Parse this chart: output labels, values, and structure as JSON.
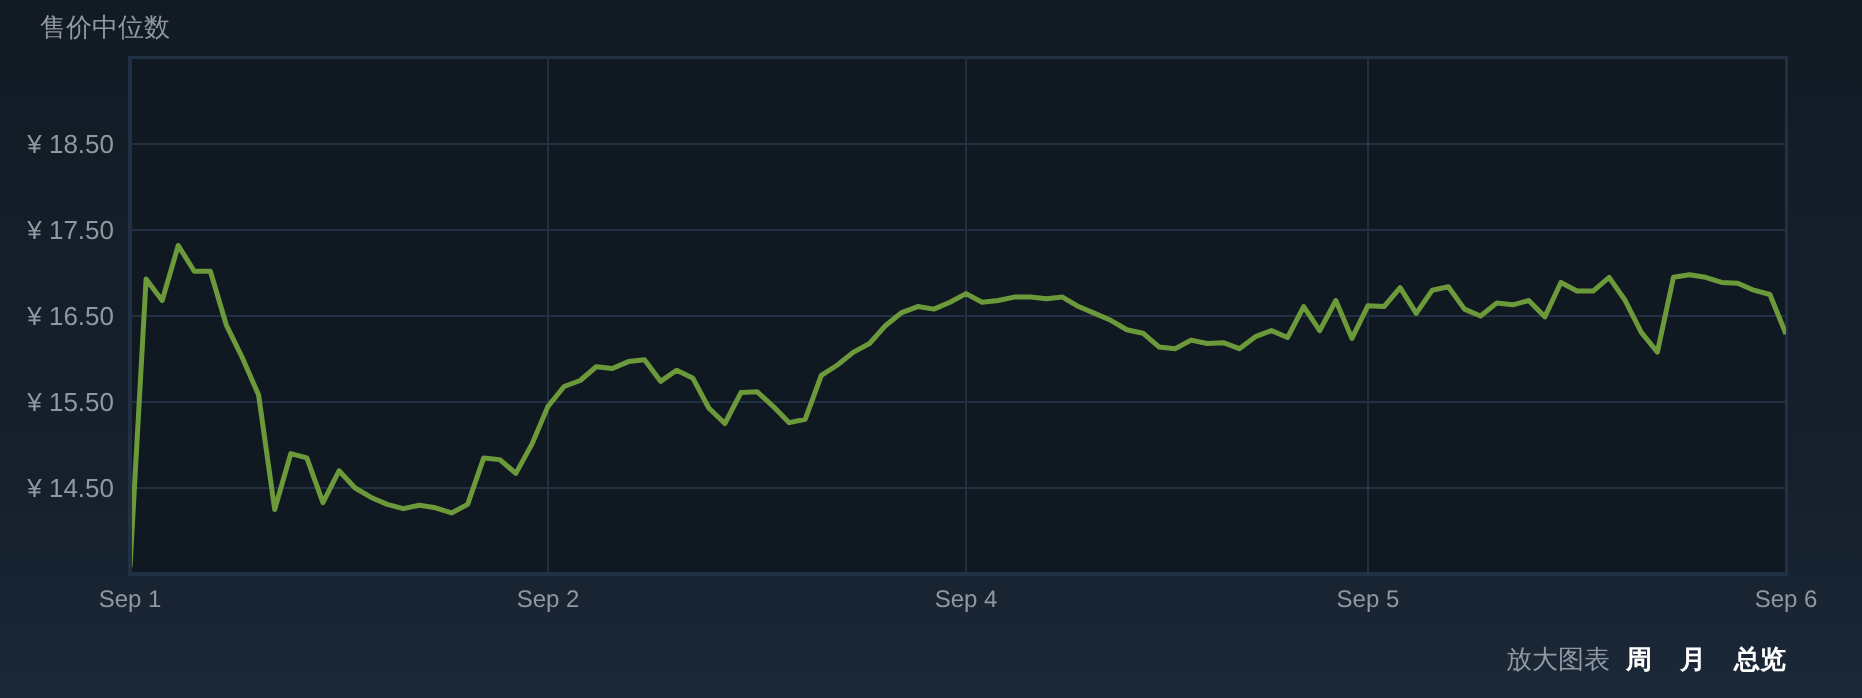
{
  "chart_data": {
    "type": "line",
    "title": "售价中位数",
    "categories": [
      "Sep 1",
      null,
      null,
      null,
      null,
      null,
      null,
      null,
      null,
      null,
      null,
      null,
      null,
      null,
      null,
      null,
      null,
      null,
      null,
      null,
      null,
      null,
      null,
      null,
      null,
      null,
      "Sep 2",
      null,
      null,
      null,
      null,
      null,
      null,
      null,
      null,
      null,
      null,
      null,
      null,
      null,
      null,
      null,
      null,
      null,
      null,
      null,
      null,
      null,
      null,
      null,
      null,
      null,
      "Sep 4",
      null,
      null,
      null,
      null,
      null,
      null,
      null,
      null,
      null,
      null,
      null,
      null,
      null,
      null,
      null,
      null,
      null,
      null,
      null,
      null,
      null,
      null,
      null,
      null,
      "Sep 5",
      null,
      null,
      null,
      null,
      null,
      null,
      null,
      null,
      null,
      null,
      null,
      null,
      null,
      null,
      null,
      null,
      null,
      null,
      null,
      null,
      null,
      null,
      null,
      null,
      null,
      "Sep 6"
    ],
    "series": [
      {
        "color": "#6c9a3a",
        "values": [
          13.58,
          16.93,
          16.68,
          17.32,
          17.02,
          17.02,
          16.39,
          16.01,
          15.58,
          14.25,
          14.9,
          14.85,
          14.33,
          14.7,
          14.5,
          14.39,
          14.31,
          14.26,
          14.3,
          14.27,
          14.21,
          14.31,
          14.85,
          14.83,
          14.67,
          15.01,
          15.45,
          15.68,
          15.75,
          15.91,
          15.89,
          15.97,
          15.99,
          15.74,
          15.87,
          15.78,
          15.43,
          15.25,
          15.61,
          15.62,
          15.45,
          15.26,
          15.3,
          15.81,
          15.93,
          16.08,
          16.18,
          16.39,
          16.54,
          16.61,
          16.58,
          16.66,
          16.76,
          16.66,
          16.68,
          16.72,
          16.72,
          16.7,
          16.72,
          16.61,
          16.53,
          16.45,
          16.34,
          16.3,
          16.14,
          16.12,
          16.22,
          16.18,
          16.19,
          16.12,
          16.26,
          16.33,
          16.25,
          16.61,
          16.33,
          16.68,
          16.24,
          16.62,
          16.61,
          16.83,
          16.53,
          16.8,
          16.84,
          16.58,
          16.5,
          16.65,
          16.63,
          16.68,
          16.49,
          16.89,
          16.79,
          16.79,
          16.95,
          16.68,
          16.31,
          16.08,
          16.95,
          16.98,
          16.95,
          16.89,
          16.88,
          16.8,
          16.75,
          16.29
        ]
      }
    ],
    "ylim": [
      13.5,
      19.5
    ],
    "yticks": [
      {
        "value": 14.5,
        "label": "¥ 14.50"
      },
      {
        "value": 15.5,
        "label": "¥ 15.50"
      },
      {
        "value": 16.5,
        "label": "¥ 16.50"
      },
      {
        "value": 17.5,
        "label": "¥ 17.50"
      },
      {
        "value": 18.5,
        "label": "¥ 18.50"
      }
    ],
    "grid": true,
    "legend": false,
    "marker": "none",
    "line_style": "solid",
    "annotations": [
      "放大图表",
      "周",
      "月",
      "总览"
    ]
  }
}
